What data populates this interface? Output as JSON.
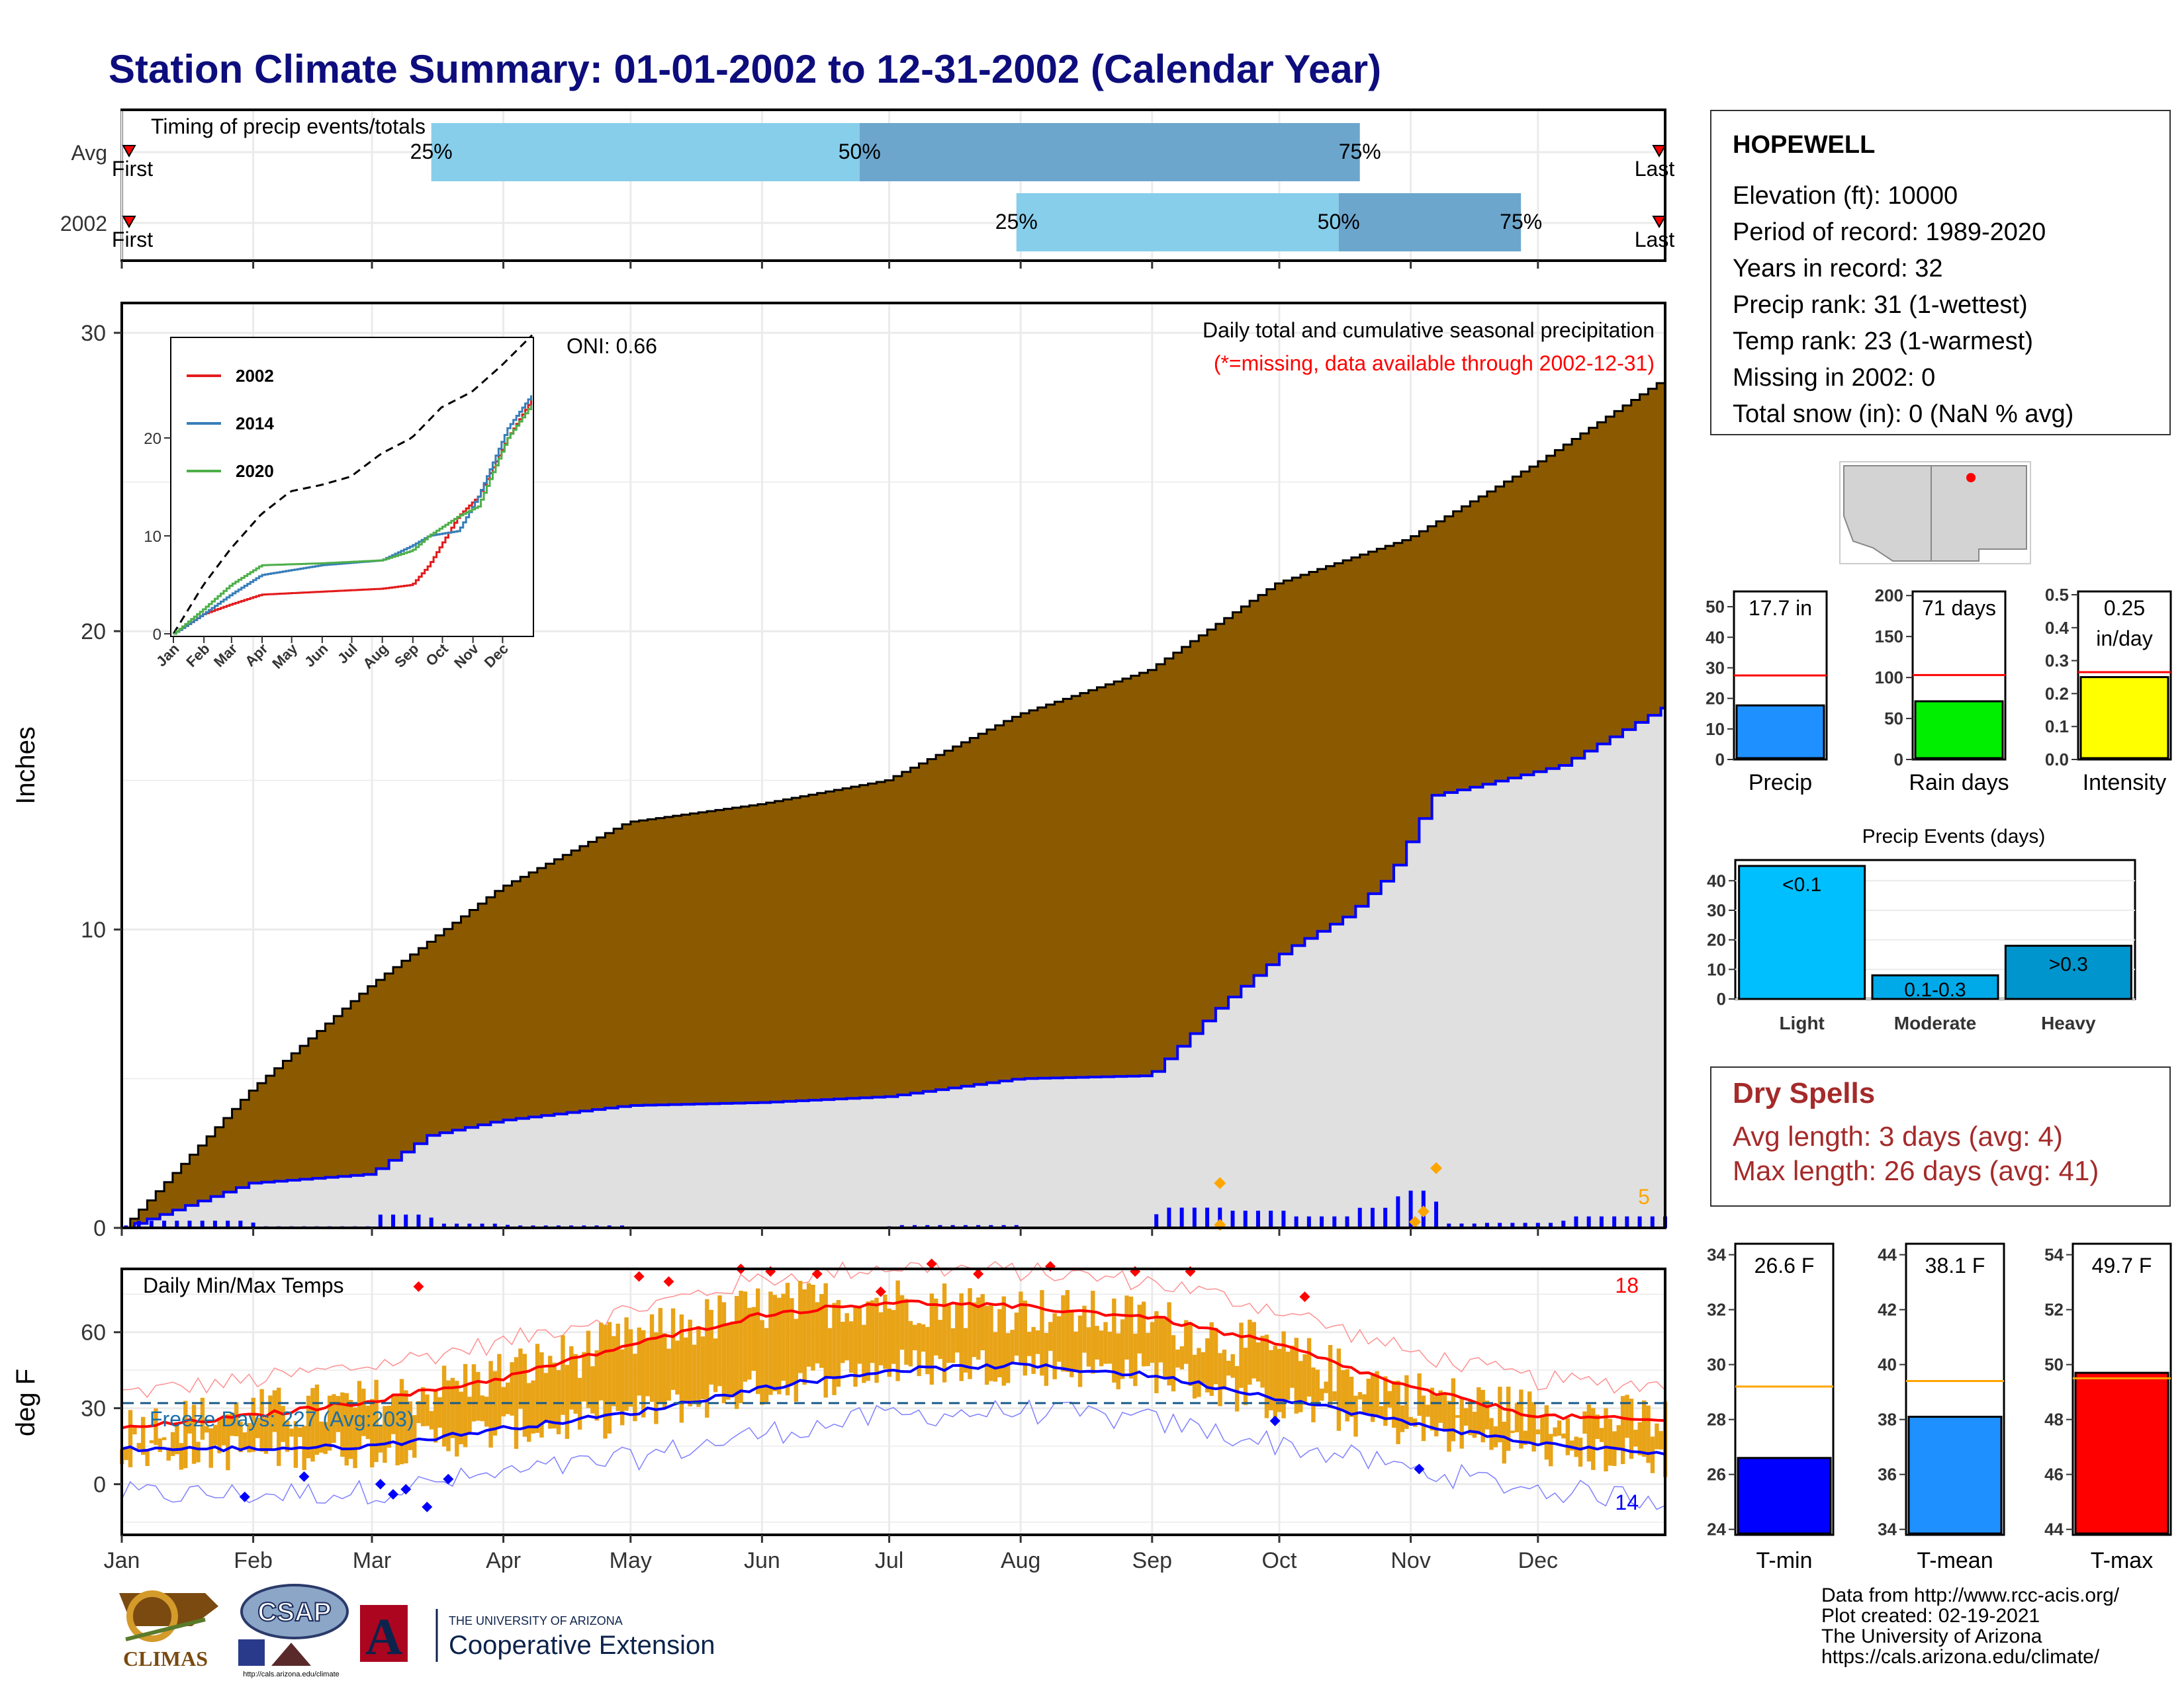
{
  "title": "Station Climate Summary: 01-01-2002 to 12-31-2002 (Calendar Year)",
  "months": [
    "Jan",
    "Feb",
    "Mar",
    "Apr",
    "May",
    "Jun",
    "Jul",
    "Aug",
    "Sep",
    "Oct",
    "Nov",
    "Dec"
  ],
  "timing": {
    "label": "Timing of precip events/totals",
    "rows": [
      {
        "name": "Avg",
        "first_label": "First",
        "last_label": "Last",
        "p25_label": "25%",
        "p50_label": "50%",
        "p75_label": "75%",
        "p25_day": 74,
        "p50_day": 175,
        "p75_day": 293
      },
      {
        "name": "2002",
        "first_label": "First",
        "last_label": "Last",
        "p25_label": "25%",
        "p50_label": "50%",
        "p75_label": "75%",
        "p25_day": 212,
        "p50_day": 288,
        "p75_day": 331
      }
    ]
  },
  "precip_panel": {
    "ylabel": "Inches",
    "title": "Daily total and cumulative seasonal precipitation",
    "note": "(*=missing, data available through 2002-12-31)",
    "oni": "ONI: 0.66",
    "count_label": "5",
    "yticks": [
      "0",
      "10",
      "20",
      "30"
    ],
    "ylim": [
      0,
      31
    ]
  },
  "inset": {
    "legend": [
      "2002",
      "2014",
      "2020"
    ],
    "yticks": [
      "0",
      "10",
      "20"
    ],
    "xticks": [
      "Jan",
      "Feb",
      "Mar",
      "Apr",
      "May",
      "Jun",
      "Jul",
      "Aug",
      "Sep",
      "Oct",
      "Nov",
      "Dec"
    ]
  },
  "temp_panel": {
    "ylabel": "deg F",
    "title": "Daily Min/Max Temps",
    "hot_count": "18",
    "cold_count": "14",
    "freeze_label": "Freeze Days: 227 (Avg:203)",
    "yticks": [
      "0",
      "30",
      "60"
    ],
    "ylim": [
      -20,
      85
    ]
  },
  "station": {
    "name": "HOPEWELL",
    "lines": [
      "Elevation (ft): 10000",
      "Period of record: 1989-2020",
      "Years in record: 32",
      "Precip rank: 31 (1-wettest)",
      "Temp rank: 23 (1-warmest)",
      "Missing in 2002: 0",
      "Total snow (in): 0 (NaN % avg)"
    ]
  },
  "summary_bars": [
    {
      "label": "Precip",
      "value_text": "17.7 in",
      "value": 17.7,
      "avg": 27.5,
      "ymax": 55,
      "yticks": [
        "0",
        "10",
        "20",
        "30",
        "40",
        "50"
      ],
      "color": "#1e90ff"
    },
    {
      "label": "Rain days",
      "value_text": "71 days",
      "value": 71,
      "avg": 103,
      "ymax": 205,
      "yticks": [
        "0",
        "50",
        "100",
        "150",
        "200"
      ],
      "color": "#00ee00"
    },
    {
      "label": "Intensity",
      "value_text": "0.25",
      "value_text2": "in/day",
      "value": 0.25,
      "avg": 0.265,
      "ymax": 0.51,
      "yticks": [
        "0.0",
        "0.1",
        "0.2",
        "0.3",
        "0.4",
        "0.5"
      ],
      "color": "#ffff00"
    }
  ],
  "events": {
    "title": "Precip Events (days)",
    "categories": [
      "Light",
      "Moderate",
      "Heavy"
    ],
    "bar_labels": [
      "<0.1",
      "0.1-0.3",
      ">0.3"
    ],
    "values": [
      45,
      8,
      18
    ],
    "yticks": [
      "0",
      "10",
      "20",
      "30",
      "40"
    ],
    "colors": [
      "#00bfff",
      "#00a9e8",
      "#0095cc"
    ]
  },
  "dry_spells": {
    "title": "Dry Spells",
    "avg_line": "Avg length: 3 days (avg: 4)",
    "max_line": "Max length: 26 days (avg: 41)"
  },
  "temp_bars": [
    {
      "label": "T-min",
      "value_text": "26.6 F",
      "value": 26.6,
      "avg": 29.2,
      "ymin": 23.8,
      "ymax": 34.4,
      "yticks": [
        "24",
        "26",
        "28",
        "30",
        "32",
        "34"
      ],
      "color": "#0000ff"
    },
    {
      "label": "T-mean",
      "value_text": "38.1 F",
      "value": 38.1,
      "avg": 39.4,
      "ymin": 33.8,
      "ymax": 44.4,
      "yticks": [
        "34",
        "36",
        "38",
        "40",
        "42",
        "44"
      ],
      "color": "#1e90ff"
    },
    {
      "label": "T-max",
      "value_text": "49.7 F",
      "value": 49.7,
      "avg": 49.5,
      "ymin": 43.8,
      "ymax": 54.4,
      "yticks": [
        "44",
        "46",
        "48",
        "50",
        "52",
        "54"
      ],
      "color": "#ff0000"
    }
  ],
  "footer": {
    "lines": [
      "Data from http://www.rcc-acis.org/",
      "Plot created: 02-19-2021",
      "The University of Arizona",
      "https://cals.arizona.edu/climate/"
    ],
    "logo_climas": "CLIMAS",
    "logo_csap": "CSAP",
    "csap_url": "http://cals.arizona.edu/climate",
    "ua_line1": "THE UNIVERSITY OF ARIZONA",
    "ua_line2": "Cooperative Extension",
    "ua_mark": "A"
  },
  "chart_data": {
    "type": "area",
    "title": "Daily total and cumulative seasonal precipitation",
    "ylabel": "Inches",
    "ylim": [
      0,
      31
    ],
    "x_units": "day of year",
    "series": [
      {
        "name": "",
        "kind": "cumulative average",
        "x": [
          1,
          31,
          59,
          90,
          120,
          151,
          181,
          212,
          243,
          273,
          304,
          334,
          365
        ],
        "values": [
          0,
          4.6,
          8.1,
          11.4,
          13.6,
          14.2,
          15.0,
          17.2,
          18.7,
          21.6,
          23.1,
          25.6,
          28.5
        ]
      },
      {
        "name": "2002",
        "x": [
          1,
          31,
          59,
          73,
          90,
          120,
          151,
          181,
          212,
          243,
          260,
          275,
          290,
          300,
          310,
          320,
          340,
          365
        ],
        "values": [
          0,
          1.5,
          1.8,
          3.1,
          3.6,
          4.1,
          4.2,
          4.4,
          5.0,
          5.1,
          7.5,
          9.3,
          10.5,
          11.9,
          14.5,
          14.8,
          15.5,
          17.5
        ]
      }
    ],
    "temperatures": {
      "x": [
        1,
        32,
        60,
        91,
        121,
        152,
        182,
        213,
        244,
        274,
        305,
        335,
        365
      ],
      "tmax_avg": [
        22,
        27,
        33,
        42,
        55,
        67,
        72,
        70,
        66,
        55,
        38,
        27,
        25
      ],
      "tmin_avg": [
        14,
        14,
        15,
        22,
        28,
        38,
        45,
        47,
        43,
        34,
        24,
        16,
        12
      ],
      "tmax_2002": [
        22,
        28,
        32,
        44,
        57,
        70,
        73,
        69,
        65,
        52,
        36,
        28,
        25
      ],
      "tmin_2002": [
        13,
        13,
        14,
        21,
        27,
        38,
        46,
        47,
        44,
        32,
        22,
        14,
        10
      ]
    }
  }
}
